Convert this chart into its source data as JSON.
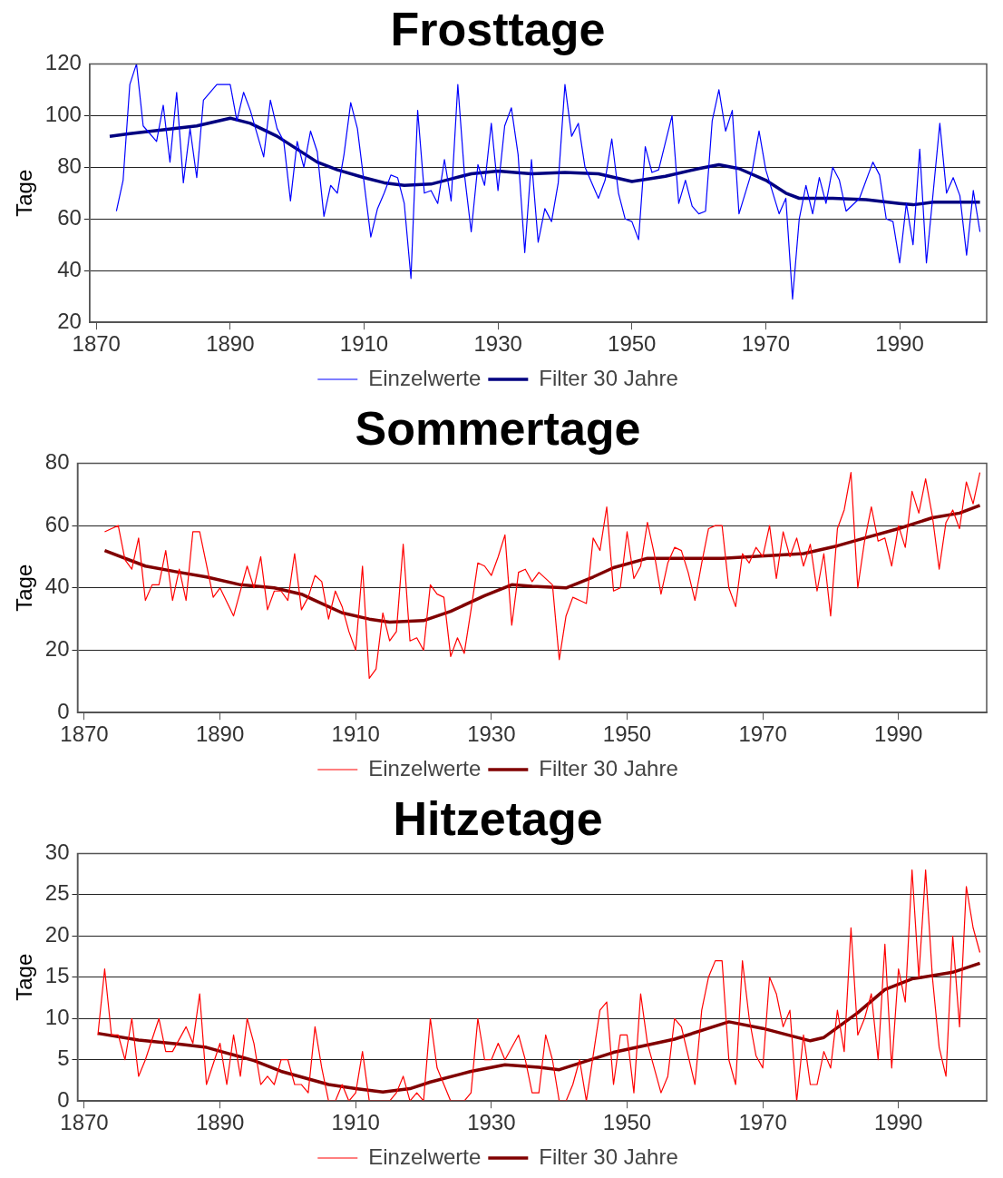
{
  "chart_data": [
    {
      "type": "line",
      "title": "Frosttage",
      "ylabel": "Tage",
      "xlim": [
        1869,
        2003
      ],
      "xticks": [
        1870,
        1890,
        1910,
        1930,
        1950,
        1970,
        1990
      ],
      "ylim": [
        20,
        120
      ],
      "yticks": [
        20,
        40,
        60,
        80,
        100,
        120
      ],
      "grid": "y",
      "legend": "bottom",
      "marker": "none",
      "series": [
        {
          "name": "Einzelwerte",
          "color": "#0000ff",
          "x": [
            1873,
            1874,
            1875,
            1876,
            1877,
            1879,
            1880,
            1881,
            1882,
            1883,
            1884,
            1885,
            1886,
            1888,
            1890,
            1891,
            1892,
            1893,
            1895,
            1896,
            1897,
            1898,
            1899,
            1900,
            1901,
            1902,
            1903,
            1904,
            1905,
            1906,
            1907,
            1908,
            1909,
            1911,
            1912,
            1913,
            1914,
            1915,
            1916,
            1917,
            1918,
            1919,
            1920,
            1921,
            1922,
            1923,
            1924,
            1925,
            1926,
            1927,
            1928,
            1929,
            1930,
            1931,
            1932,
            1933,
            1934,
            1935,
            1936,
            1937,
            1938,
            1939,
            1940,
            1941,
            1942,
            1943,
            1945,
            1946,
            1947,
            1948,
            1949,
            1950,
            1951,
            1952,
            1953,
            1954,
            1956,
            1957,
            1958,
            1959,
            1960,
            1961,
            1962,
            1963,
            1964,
            1965,
            1966,
            1968,
            1969,
            1970,
            1972,
            1973,
            1974,
            1975,
            1976,
            1977,
            1978,
            1979,
            1980,
            1981,
            1982,
            1984,
            1986,
            1987,
            1988,
            1989,
            1990,
            1991,
            1992,
            1993,
            1994,
            1995,
            1996,
            1997,
            1998,
            1999,
            2000,
            2001,
            2002
          ],
          "values": [
            63,
            75,
            112,
            120,
            96,
            90,
            104,
            82,
            109,
            74,
            95,
            76,
            106,
            112,
            112,
            98,
            109,
            102,
            84,
            106,
            95,
            90,
            67,
            90,
            80,
            94,
            86,
            61,
            73,
            70,
            85,
            105,
            95,
            53,
            64,
            70,
            77,
            76,
            66,
            37,
            102,
            70,
            71,
            66,
            83,
            67,
            112,
            77,
            55,
            81,
            73,
            97,
            71,
            96,
            103,
            85,
            47,
            83,
            51,
            64,
            59,
            74,
            112,
            92,
            97,
            80,
            68,
            75,
            91,
            70,
            60,
            59,
            52,
            88,
            78,
            79,
            100,
            66,
            75,
            65,
            62,
            63,
            98,
            110,
            94,
            102,
            62,
            79,
            94,
            79,
            62,
            68,
            29,
            60,
            73,
            62,
            76,
            66,
            80,
            75,
            63,
            68,
            82,
            77,
            60,
            59,
            43,
            66,
            50,
            87,
            43,
            70,
            97,
            70,
            76,
            69,
            46,
            71,
            55
          ]
        },
        {
          "name": "Filter 30 Jahre",
          "color": "#000080",
          "x": [
            1872,
            1875,
            1880,
            1885,
            1890,
            1893,
            1897,
            1900,
            1903,
            1906,
            1910,
            1913,
            1916,
            1920,
            1923,
            1926,
            1930,
            1935,
            1940,
            1945,
            1950,
            1955,
            1960,
            1963,
            1966,
            1970,
            1973,
            1975,
            1980,
            1985,
            1990,
            1992,
            1995,
            2002
          ],
          "values": [
            92,
            93,
            94.5,
            96,
            99,
            97,
            92,
            87,
            82,
            79,
            76,
            74,
            73,
            73.5,
            75.5,
            77.5,
            78.5,
            77.5,
            78,
            77.5,
            74.5,
            76.5,
            79.5,
            81,
            79.5,
            75,
            70,
            68,
            68,
            67.5,
            66,
            65.5,
            66.5,
            66.5
          ]
        }
      ]
    },
    {
      "type": "line",
      "title": "Sommertage",
      "ylabel": "Tage",
      "xlim": [
        1869,
        2003
      ],
      "xticks": [
        1870,
        1890,
        1910,
        1930,
        1950,
        1970,
        1990
      ],
      "ylim": [
        0,
        80
      ],
      "yticks": [
        0,
        20,
        40,
        60,
        80
      ],
      "grid": "y",
      "legend": "bottom",
      "marker": "none",
      "series": [
        {
          "name": "Einzelwerte",
          "color": "#ff0000",
          "x": [
            1873,
            1874,
            1875,
            1876,
            1877,
            1878,
            1879,
            1880,
            1881,
            1882,
            1883,
            1884,
            1885,
            1886,
            1887,
            1889,
            1890,
            1892,
            1894,
            1895,
            1896,
            1897,
            1898,
            1899,
            1900,
            1901,
            1902,
            1903,
            1904,
            1905,
            1906,
            1907,
            1908,
            1909,
            1910,
            1911,
            1912,
            1913,
            1914,
            1915,
            1916,
            1917,
            1918,
            1919,
            1920,
            1921,
            1922,
            1923,
            1924,
            1925,
            1926,
            1927,
            1928,
            1929,
            1930,
            1931,
            1932,
            1933,
            1934,
            1935,
            1936,
            1937,
            1939,
            1940,
            1941,
            1942,
            1943,
            1944,
            1945,
            1946,
            1947,
            1948,
            1949,
            1950,
            1951,
            1952,
            1953,
            1954,
            1955,
            1956,
            1957,
            1958,
            1959,
            1960,
            1961,
            1962,
            1963,
            1964,
            1965,
            1966,
            1967,
            1968,
            1969,
            1970,
            1971,
            1972,
            1973,
            1974,
            1975,
            1976,
            1977,
            1978,
            1979,
            1980,
            1981,
            1982,
            1983,
            1984,
            1985,
            1986,
            1987,
            1988,
            1989,
            1990,
            1991,
            1992,
            1993,
            1994,
            1995,
            1996,
            1997,
            1998,
            1999,
            2000,
            2001,
            2002
          ],
          "values": [
            58,
            59,
            60,
            49,
            46,
            56,
            36,
            41,
            41,
            52,
            36,
            46,
            36,
            58,
            58,
            37,
            40,
            31,
            47,
            40,
            50,
            33,
            39,
            39,
            36,
            51,
            33,
            37,
            44,
            42,
            30,
            39,
            34,
            26,
            20,
            47,
            11,
            14,
            32,
            23,
            26,
            54,
            23,
            24,
            20,
            41,
            38,
            37,
            18,
            24,
            19,
            33,
            48,
            47,
            44,
            50,
            57,
            28,
            45,
            46,
            42,
            45,
            41,
            17,
            31,
            37,
            36,
            35,
            56,
            52,
            66,
            39,
            40,
            58,
            43,
            47,
            61,
            51,
            38,
            48,
            53,
            52,
            45,
            36,
            48,
            59,
            60,
            60,
            40,
            34,
            51,
            48,
            53,
            50,
            60,
            43,
            58,
            50,
            56,
            47,
            54,
            39,
            51,
            31,
            59,
            65,
            77,
            40,
            55,
            66,
            55,
            56,
            47,
            60,
            53,
            71,
            64,
            75,
            63,
            46,
            61,
            65,
            59,
            74,
            67,
            77
          ]
        },
        {
          "name": "Filter 30 Jahre",
          "color": "#800000",
          "x": [
            1873,
            1879,
            1884,
            1888,
            1893,
            1898,
            1902,
            1904,
            1908,
            1912,
            1915,
            1920,
            1924,
            1929,
            1933,
            1936,
            1941,
            1945,
            1948,
            1953,
            1964,
            1976,
            1981,
            1985,
            1990,
            1995,
            1999,
            2002
          ],
          "values": [
            52,
            47,
            45,
            43.5,
            41,
            40,
            38,
            36,
            32,
            30,
            29,
            29.5,
            32.5,
            37.5,
            41,
            40.5,
            40,
            43.5,
            46.5,
            49.5,
            49.5,
            51,
            53.5,
            56,
            59,
            62.5,
            64,
            66.5
          ]
        }
      ]
    },
    {
      "type": "line",
      "title": "Hitzetage",
      "ylabel": "Tage",
      "xlim": [
        1869,
        2003
      ],
      "xticks": [
        1870,
        1890,
        1910,
        1930,
        1950,
        1970,
        1990
      ],
      "ylim": [
        0,
        30
      ],
      "yticks": [
        0,
        5,
        10,
        15,
        20,
        25,
        30
      ],
      "grid": "y",
      "legend": "bottom",
      "marker": "none",
      "series": [
        {
          "name": "Einzelwerte",
          "color": "#ff0000",
          "x": [
            1872,
            1873,
            1874,
            1875,
            1876,
            1877,
            1878,
            1879,
            1881,
            1882,
            1883,
            1885,
            1886,
            1887,
            1888,
            1890,
            1891,
            1892,
            1893,
            1894,
            1895,
            1896,
            1897,
            1898,
            1899,
            1900,
            1901,
            1902,
            1903,
            1904,
            1905,
            1906,
            1907,
            1908,
            1909,
            1910,
            1911,
            1912,
            1915,
            1916,
            1917,
            1918,
            1919,
            1920,
            1921,
            1922,
            1923,
            1924,
            1926,
            1927,
            1928,
            1929,
            1930,
            1931,
            1932,
            1934,
            1935,
            1936,
            1937,
            1938,
            1939,
            1940,
            1941,
            1942,
            1943,
            1944,
            1946,
            1947,
            1948,
            1949,
            1950,
            1951,
            1952,
            1953,
            1955,
            1956,
            1957,
            1958,
            1960,
            1961,
            1962,
            1963,
            1964,
            1965,
            1966,
            1967,
            1968,
            1969,
            1970,
            1971,
            1972,
            1973,
            1974,
            1975,
            1976,
            1977,
            1978,
            1979,
            1980,
            1981,
            1982,
            1983,
            1984,
            1985,
            1986,
            1987,
            1988,
            1989,
            1990,
            1991,
            1992,
            1993,
            1994,
            1995,
            1996,
            1997,
            1998,
            1999,
            2000,
            2001,
            2002
          ],
          "values": [
            8,
            16,
            8,
            8,
            5,
            10,
            3,
            5,
            10,
            6,
            6,
            9,
            7,
            13,
            2,
            7,
            2,
            8,
            3,
            10,
            7,
            2,
            3,
            2,
            5,
            5,
            2,
            2,
            1,
            9,
            4,
            0,
            0,
            2,
            0,
            1,
            6,
            0,
            0,
            1,
            3,
            0,
            1,
            0,
            10,
            4,
            2,
            0,
            0,
            1,
            10,
            5,
            5,
            7,
            5,
            8,
            5,
            1,
            1,
            8,
            5,
            0,
            0,
            2,
            5,
            0,
            11,
            12,
            2,
            8,
            8,
            1,
            13,
            7,
            1,
            3,
            10,
            9,
            2,
            11,
            15,
            17,
            17,
            5,
            2,
            17,
            10,
            5.5,
            4,
            15,
            13,
            9,
            11,
            0,
            8,
            2,
            2,
            6,
            4,
            11,
            6,
            21,
            8,
            10,
            13,
            5,
            19,
            4,
            16,
            12,
            28,
            15,
            28,
            15,
            6.5,
            3,
            20,
            9,
            26,
            21,
            18
          ]
        },
        {
          "name": "Filter 30 Jahre",
          "color": "#800000",
          "x": [
            1872,
            1878,
            1884,
            1888,
            1895,
            1899,
            1906,
            1910,
            1914,
            1918,
            1921,
            1927,
            1932,
            1937,
            1940,
            1948,
            1957,
            1965,
            1970,
            1977,
            1979,
            1984,
            1988,
            1992,
            1998,
            2002
          ],
          "values": [
            8.2,
            7.4,
            6.9,
            6.5,
            4.9,
            3.6,
            2,
            1.5,
            1.1,
            1.5,
            2.3,
            3.6,
            4.4,
            4.1,
            3.8,
            5.9,
            7.5,
            9.6,
            8.8,
            7.3,
            7.7,
            10.7,
            13.5,
            14.8,
            15.6,
            16.7
          ]
        }
      ]
    }
  ]
}
